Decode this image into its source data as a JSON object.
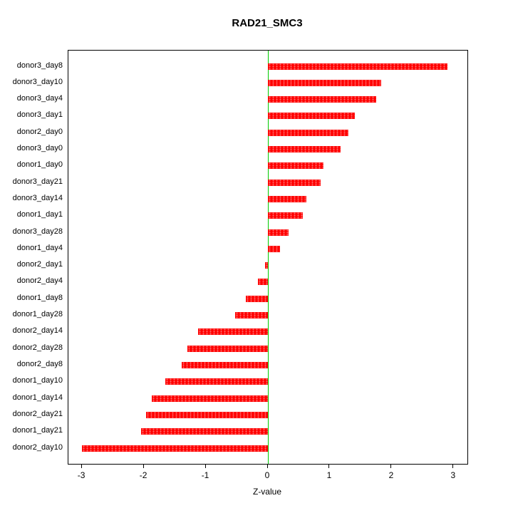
{
  "chart_data": {
    "type": "bar",
    "orientation": "horizontal",
    "title": "RAD21_SMC3",
    "xlabel": "Z-value",
    "ylabel": "",
    "categories": [
      "donor3_day8",
      "donor3_day10",
      "donor3_day4",
      "donor3_day1",
      "donor2_day0",
      "donor3_day0",
      "donor1_day0",
      "donor3_day21",
      "donor3_day14",
      "donor1_day1",
      "donor3_day28",
      "donor1_day4",
      "donor2_day1",
      "donor2_day4",
      "donor1_day8",
      "donor1_day28",
      "donor2_day14",
      "donor2_day28",
      "donor2_day8",
      "donor1_day10",
      "donor1_day14",
      "donor2_day21",
      "donor1_day21",
      "donor2_day10"
    ],
    "values": [
      2.9,
      1.83,
      1.75,
      1.4,
      1.3,
      1.17,
      0.9,
      0.85,
      0.62,
      0.56,
      0.33,
      0.2,
      -0.05,
      -0.16,
      -0.36,
      -0.53,
      -1.13,
      -1.3,
      -1.39,
      -1.66,
      -1.87,
      -1.97,
      -2.05,
      -3.0
    ],
    "xlim": [
      -3.22,
      3.22
    ],
    "x_ticks": [
      -3,
      -2,
      -1,
      0,
      1,
      2,
      3
    ],
    "x_tick_labels": [
      "-3",
      "-2",
      "-1",
      "0",
      "1",
      "2",
      "3"
    ],
    "bar_color": "#ff0000",
    "zero_line_color": "#00cc00",
    "grid": false,
    "legend": "none"
  }
}
